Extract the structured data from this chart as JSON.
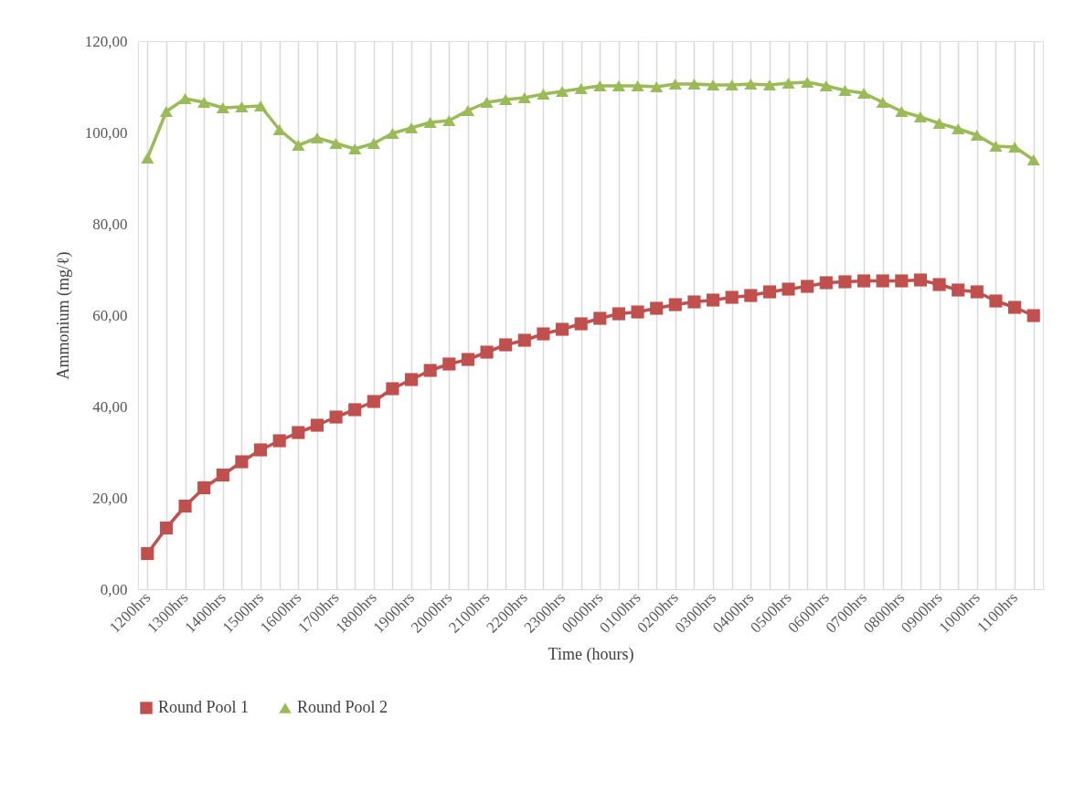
{
  "chart_data": {
    "type": "line",
    "xlabel": "Time (hours)",
    "ylabel": "Ammonium (mg/ℓ)",
    "categories": [
      "1200hrs",
      null,
      "1300hrs",
      null,
      "1400hrs",
      null,
      "1500hrs",
      null,
      "1600hrs",
      null,
      "1700hrs",
      null,
      "1800hrs",
      null,
      "1900hrs",
      null,
      "2000hrs",
      null,
      "2100hrs",
      null,
      "2200hrs",
      null,
      "2300hrs",
      null,
      "0000hrs",
      null,
      "0100hrs",
      null,
      "0200hrs",
      null,
      "0300hrs",
      null,
      "0400hrs",
      null,
      "0500hrs",
      null,
      "0600hrs",
      null,
      "0700hrs",
      null,
      "0800hrs",
      null,
      "0900hrs",
      null,
      "1000hrs",
      null,
      "1100hrs",
      null
    ],
    "series": [
      {
        "name": "Round Pool 1",
        "color": "#c0504d",
        "marker": "square",
        "values": [
          7.8,
          13.4,
          18.2,
          22.2,
          25.0,
          27.9,
          30.5,
          32.5,
          34.3,
          35.9,
          37.7,
          39.3,
          41.1,
          43.9,
          45.9,
          47.9,
          49.3,
          50.3,
          51.9,
          53.5,
          54.5,
          55.9,
          56.9,
          58.1,
          59.3,
          60.3,
          60.7,
          61.5,
          62.3,
          62.9,
          63.3,
          63.9,
          64.3,
          65.1,
          65.7,
          66.3,
          67.1,
          67.3,
          67.5,
          67.5,
          67.5,
          67.7,
          66.7,
          65.5,
          65.1,
          63.1,
          61.7,
          59.9
        ]
      },
      {
        "name": "Round Pool 2",
        "color": "#9bbb59",
        "marker": "triangle",
        "values": [
          94.4,
          104.6,
          107.4,
          106.6,
          105.4,
          105.6,
          105.8,
          100.6,
          97.2,
          98.8,
          97.6,
          96.4,
          97.6,
          99.8,
          101.0,
          102.2,
          102.6,
          104.8,
          106.6,
          107.2,
          107.6,
          108.4,
          109.0,
          109.6,
          110.2,
          110.2,
          110.2,
          110.0,
          110.6,
          110.6,
          110.4,
          110.4,
          110.6,
          110.4,
          110.8,
          111.0,
          110.2,
          109.2,
          108.6,
          106.6,
          104.6,
          103.4,
          102.0,
          100.8,
          99.4,
          97.0,
          96.8,
          94.0
        ]
      }
    ],
    "ylim": [
      0,
      120
    ],
    "yticks": [
      {
        "value": 0,
        "label": "0,00"
      },
      {
        "value": 20,
        "label": "20,00"
      },
      {
        "value": 40,
        "label": "40,00"
      },
      {
        "value": 60,
        "label": "60,00"
      },
      {
        "value": 80,
        "label": "80,00"
      },
      {
        "value": 100,
        "label": "100,00"
      },
      {
        "value": 120,
        "label": "120,00"
      }
    ],
    "grid": "x",
    "legend": "bottom",
    "line_style": "solid"
  }
}
